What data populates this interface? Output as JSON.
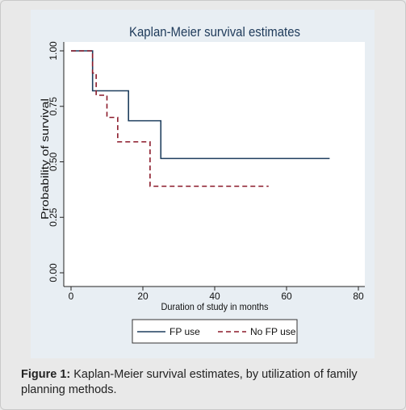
{
  "chart_data": {
    "type": "line",
    "title": "Kaplan-Meier survival estimates",
    "xlabel": "Duration of study in months",
    "ylabel": "Probability of survival",
    "xlim": [
      0,
      80
    ],
    "ylim": [
      0,
      1
    ],
    "x_ticks": [
      "0",
      "20",
      "40",
      "60",
      "80"
    ],
    "x_tick_values": [
      0,
      20,
      40,
      60,
      80
    ],
    "y_ticks": [
      "0.00",
      "0.25",
      "0.50",
      "0.75",
      "1.00"
    ],
    "y_tick_values": [
      0,
      0.25,
      0.5,
      0.75,
      1
    ],
    "step": true,
    "legend_position": "bottom",
    "series": [
      {
        "name": "FP use",
        "color": "#1f3f5f",
        "dash": "solid",
        "x": [
          0,
          6,
          16,
          25,
          72
        ],
        "y": [
          1.0,
          0.82,
          0.685,
          0.515,
          0.515
        ]
      },
      {
        "name": "No FP use",
        "color": "#8b1a2a",
        "dash": "dashed",
        "x": [
          0,
          6,
          7,
          10,
          13,
          22,
          55
        ],
        "y": [
          1.0,
          0.9,
          0.8,
          0.7,
          0.59,
          0.39,
          0.39
        ]
      }
    ]
  },
  "caption": {
    "label": "Figure 1:",
    "text": " Kaplan-Meier survival estimates, by utilization of family planning methods."
  }
}
